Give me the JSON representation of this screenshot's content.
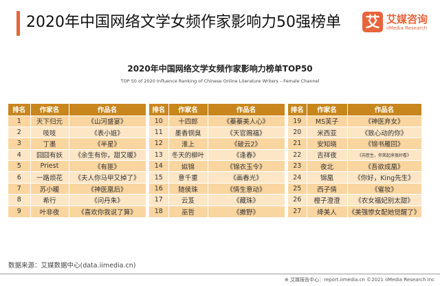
{
  "header": {
    "title": "2020年中国网络文学女频作家影响力50强榜单",
    "logo_mark": "艾",
    "logo_cn": "艾媒咨询",
    "logo_en": "iiMedia Research"
  },
  "chart": {
    "title": "2020年中国网络文学女频作家影响力榜单TOP50",
    "subtitle": "TOP 50 of 2020 Influence Ranking of Chinese Online Literature Writers – Female Channel"
  },
  "columns": [
    "排名",
    "作家名",
    "作品名"
  ],
  "groups": [
    [
      [
        "1",
        "天下归元",
        "《山河盛宴》"
      ],
      [
        "2",
        "吱吱",
        "《表小姐》"
      ],
      [
        "3",
        "丁墨",
        "《半星》"
      ],
      [
        "4",
        "囧囧有妖",
        "《余生有你，甜又暖》"
      ],
      [
        "5",
        "Priest",
        "《有匪》"
      ],
      [
        "6",
        "一路烦花",
        "《夫人你马甲又掉了》"
      ],
      [
        "7",
        "苏小暖",
        "《神医凰后》"
      ],
      [
        "8",
        "希行",
        "《问丹朱》"
      ],
      [
        "9",
        "叶非夜",
        "《喜欢你我说了算》"
      ]
    ],
    [
      [
        "10",
        "十四郎",
        "《蓁蓁美人心》"
      ],
      [
        "11",
        "墨香铜臭",
        "《天官赐福》"
      ],
      [
        "12",
        "淮上",
        "《破云2》"
      ],
      [
        "13",
        "冬天的柳叶",
        "《逢春》"
      ],
      [
        "14",
        "姒锦",
        "《锦衣玉令》"
      ],
      [
        "15",
        "意千重",
        "《画春光》"
      ],
      [
        "16",
        "随侯珠",
        "《情生意动》"
      ],
      [
        "17",
        "云芨",
        "《藏珠》"
      ],
      [
        "18",
        "巫哲",
        "《撒野》"
      ]
    ],
    [
      [
        "19",
        "MS芙子",
        "《神医弃女》"
      ],
      [
        "20",
        "米西亚",
        "《致心动的你》"
      ],
      [
        "21",
        "安知晓",
        "《锦书雁回》"
      ],
      [
        "22",
        "吉祥夜",
        "《苏医生，你笑起来很好看》"
      ],
      [
        "23",
        "夜北",
        "《吾欲成凰》"
      ],
      [
        "24",
        "锦凰",
        "《你好，King先生》"
      ],
      [
        "25",
        "西子情",
        "《催妆》"
      ],
      [
        "26",
        "橙子澄澄",
        "《农女福妃别太甜》"
      ],
      [
        "27",
        "绛美人",
        "《美强惨女配她觉醒了》"
      ]
    ]
  ],
  "footer": {
    "source": "数据来源：艾媒数据中心(data.iimedia.cn)",
    "copyright": "艾媒报告中心：report.iimedia.cn  ©2021  iiMedia Research Inc"
  }
}
